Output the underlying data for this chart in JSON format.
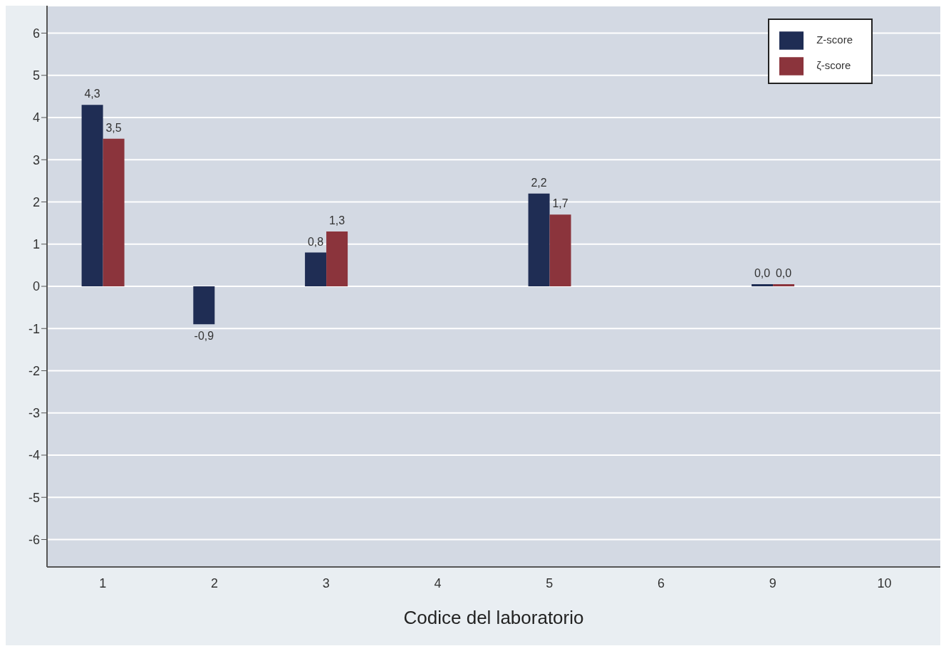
{
  "chart_data": {
    "type": "bar",
    "xlabel": "Codice del laboratorio",
    "categories": [
      "1",
      "2",
      "3",
      "4",
      "5",
      "6",
      "9",
      "10"
    ],
    "series": [
      {
        "name": "Z-score",
        "color": "#1f2d54",
        "values": [
          4.3,
          -0.9,
          0.8,
          null,
          2.2,
          null,
          0.0,
          null
        ],
        "value_labels": [
          "4,3",
          "-0,9",
          "0,8",
          null,
          "2,2",
          null,
          "0,0",
          null
        ]
      },
      {
        "name": "ζ-score",
        "color": "#8b343c",
        "values": [
          3.5,
          null,
          1.3,
          null,
          1.7,
          null,
          0.0,
          null
        ],
        "value_labels": [
          "3,5",
          null,
          "1,3",
          null,
          "1,7",
          null,
          "0,0",
          null
        ]
      }
    ],
    "ylim": [
      -6.65,
      6.65
    ],
    "yticks": [
      -6,
      -5,
      -4,
      -3,
      -2,
      -1,
      0,
      1,
      2,
      3,
      4,
      5,
      6
    ],
    "grid": "y",
    "legend": "top right"
  }
}
